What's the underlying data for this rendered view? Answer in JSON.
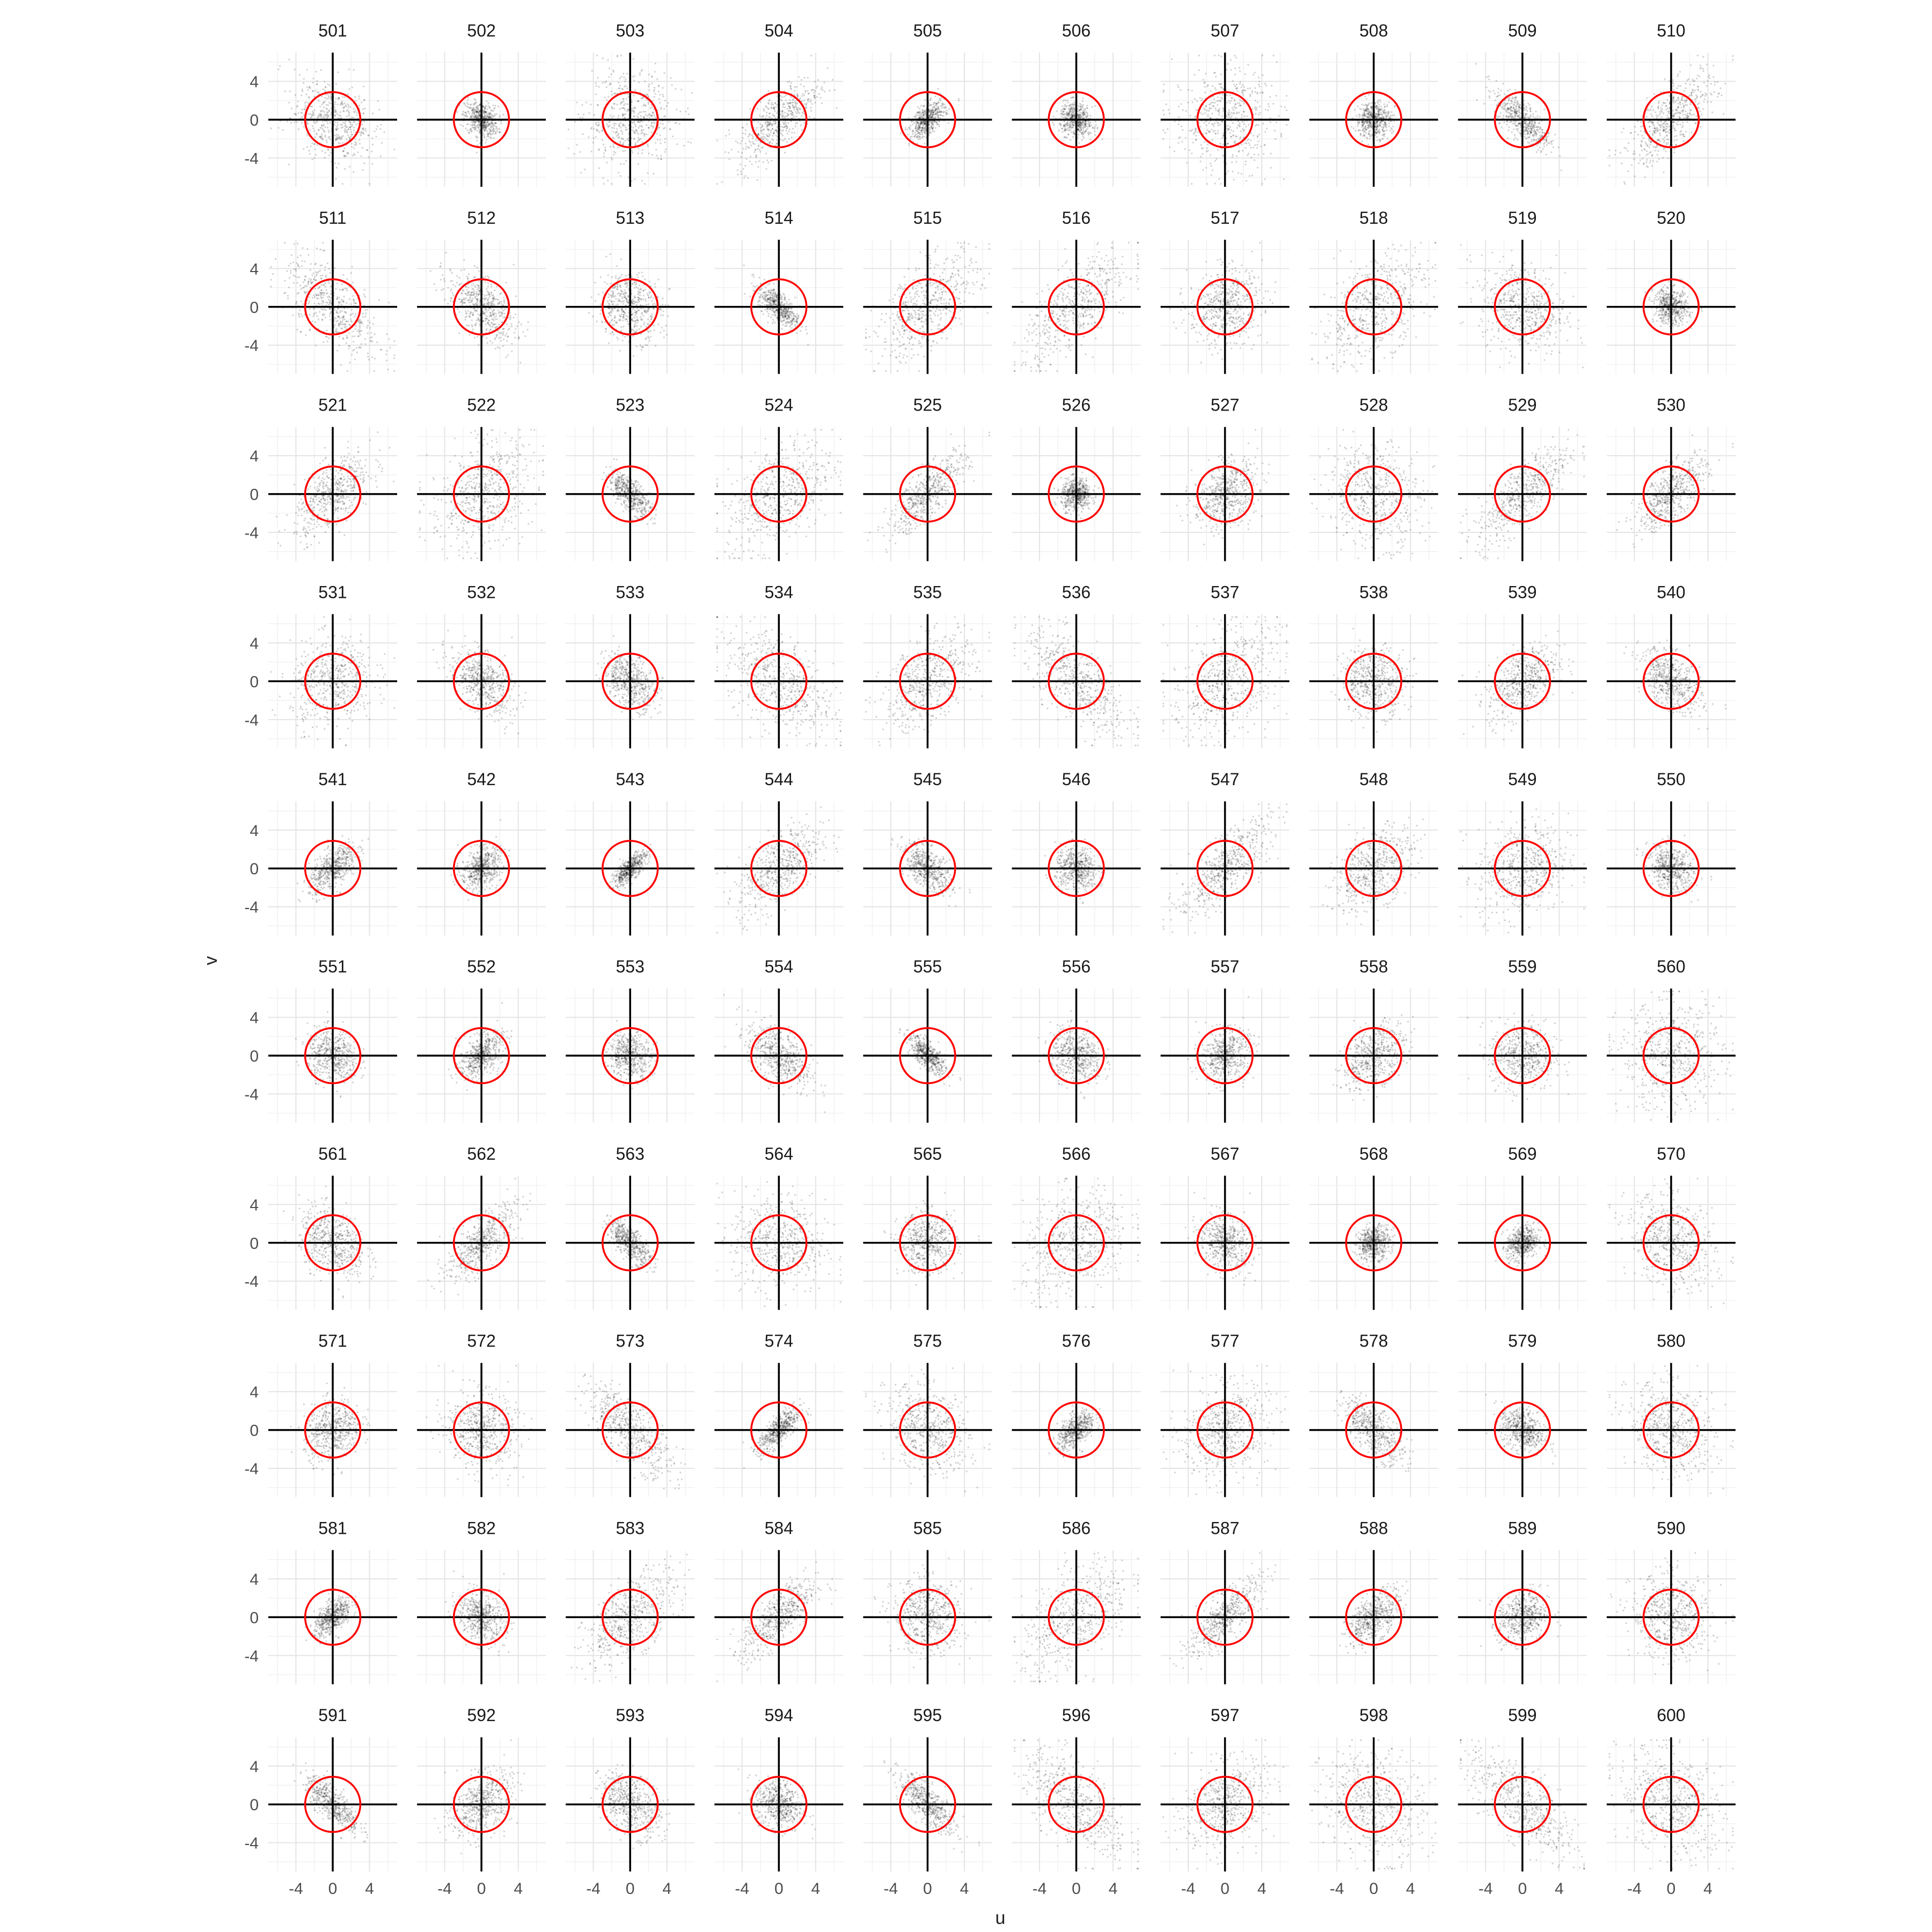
{
  "chart_data": {
    "type": "scatter",
    "facet_layout": "grid-10x10",
    "facets": [
      "501",
      "502",
      "503",
      "504",
      "505",
      "506",
      "507",
      "508",
      "509",
      "510",
      "511",
      "512",
      "513",
      "514",
      "515",
      "516",
      "517",
      "518",
      "519",
      "520",
      "521",
      "522",
      "523",
      "524",
      "525",
      "526",
      "527",
      "528",
      "529",
      "530",
      "531",
      "532",
      "533",
      "534",
      "535",
      "536",
      "537",
      "538",
      "539",
      "540",
      "541",
      "542",
      "543",
      "544",
      "545",
      "546",
      "547",
      "548",
      "549",
      "550",
      "551",
      "552",
      "553",
      "554",
      "555",
      "556",
      "557",
      "558",
      "559",
      "560",
      "561",
      "562",
      "563",
      "564",
      "565",
      "566",
      "567",
      "568",
      "569",
      "570",
      "571",
      "572",
      "573",
      "574",
      "575",
      "576",
      "577",
      "578",
      "579",
      "580",
      "581",
      "582",
      "583",
      "584",
      "585",
      "586",
      "587",
      "588",
      "589",
      "590",
      "591",
      "592",
      "593",
      "594",
      "595",
      "596",
      "597",
      "598",
      "599",
      "600"
    ],
    "xlabel": "u",
    "ylabel": "v",
    "xlim": [
      -7,
      7
    ],
    "ylim": [
      -7,
      7
    ],
    "xticks": [
      -4,
      0,
      4
    ],
    "yticks": [
      4,
      0,
      -4
    ],
    "xtick_labels": [
      "-4",
      "0",
      "4"
    ],
    "ytick_labels": [
      "4",
      "0",
      "-4"
    ],
    "reference_circle": {
      "center": [
        0,
        0
      ],
      "radius": 3,
      "color": "#ff0000"
    },
    "reference_lines": {
      "x": 0,
      "y": 0,
      "color": "#000000"
    },
    "point_color": "#000000",
    "grid": true,
    "legend": "none"
  }
}
